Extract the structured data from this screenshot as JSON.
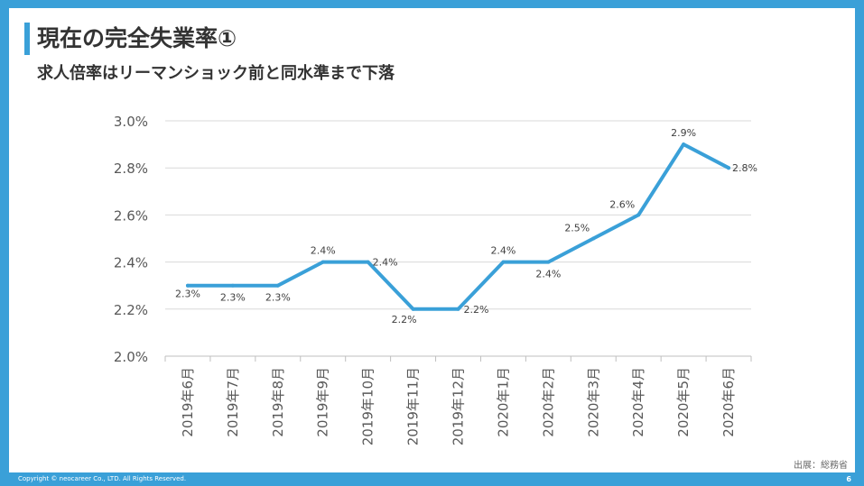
{
  "slide": {
    "title": "現在の完全失業率①",
    "subtitle": "求人倍率はリーマンショック前と同水準まで下落",
    "source": "出展：総務省",
    "footer": "Copyright © neocareer Co., LTD. All Rights Reserved.",
    "page_number": "6",
    "accent_color": "#3aa0d8"
  },
  "chart_data": {
    "type": "line",
    "title": "",
    "xlabel": "",
    "ylabel": "",
    "categories": [
      "2019年6月",
      "2019年7月",
      "2019年8月",
      "2019年9月",
      "2019年10月",
      "2019年11月",
      "2019年12月",
      "2020年1月",
      "2020年2月",
      "2020年3月",
      "2020年4月",
      "2020年5月",
      "2020年6月"
    ],
    "series": [
      {
        "name": "完全失業率",
        "values": [
          2.3,
          2.3,
          2.3,
          2.4,
          2.4,
          2.2,
          2.2,
          2.4,
          2.4,
          2.5,
          2.6,
          2.9,
          2.8
        ],
        "labels": [
          "2.3%",
          "2.3%",
          "2.3%",
          "2.4%",
          "2.4%",
          "2.2%",
          "2.2%",
          "2.4%",
          "2.4%",
          "2.5%",
          "2.6%",
          "2.9%",
          "2.8%"
        ],
        "color": "#3aa0d8"
      }
    ],
    "ylim": [
      2.0,
      3.0
    ],
    "yticks": [
      2.0,
      2.2,
      2.4,
      2.6,
      2.8,
      3.0
    ],
    "ytick_labels": [
      "2.0%",
      "2.2%",
      "2.4%",
      "2.6%",
      "2.8%",
      "3.0%"
    ],
    "grid": true,
    "legend": "none"
  }
}
